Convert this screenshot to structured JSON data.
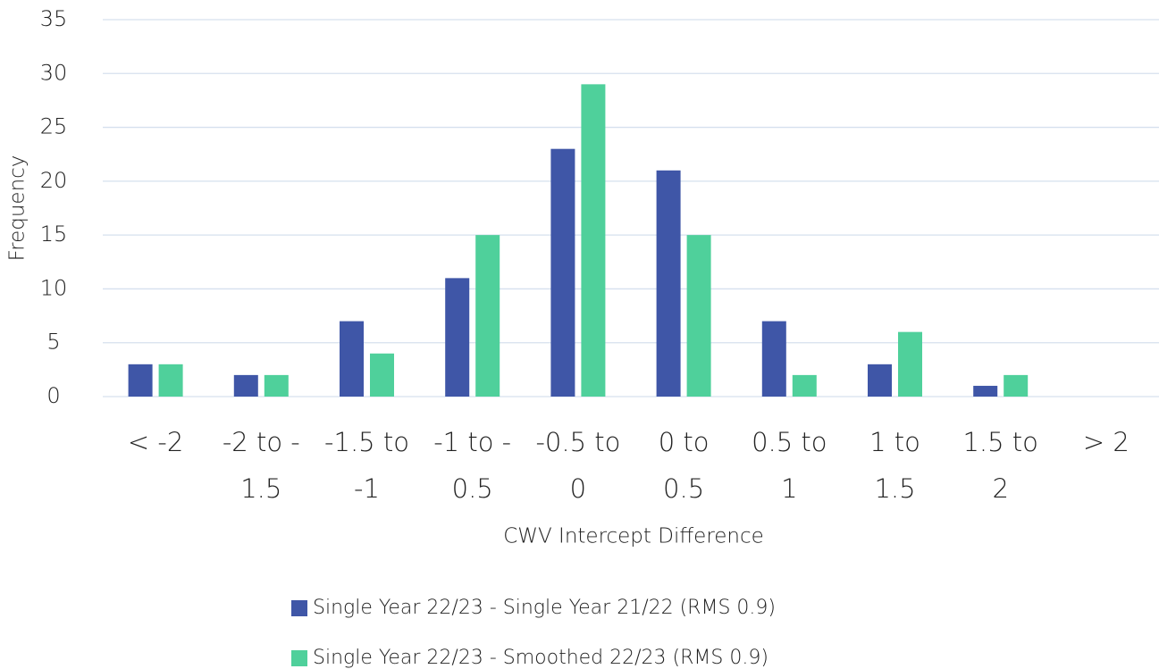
{
  "chart_data": {
    "type": "bar",
    "x_label": "CWV Intercept Difference",
    "y_label": "Frequency",
    "categories": [
      [
        "< -2"
      ],
      [
        "-2 to -",
        "1.5"
      ],
      [
        "-1.5 to",
        "-1"
      ],
      [
        "-1 to -",
        "0.5"
      ],
      [
        "-0.5 to",
        "0"
      ],
      [
        "0 to",
        "0.5"
      ],
      [
        "0.5 to",
        "1"
      ],
      [
        "1 to",
        "1.5"
      ],
      [
        "1.5 to",
        "2"
      ],
      [
        "> 2"
      ]
    ],
    "series": [
      {
        "name": "Single Year 22/23 - Single Year 21/22 (RMS 0.9)",
        "color": "#3f56a7",
        "values": [
          3,
          2,
          7,
          11,
          23,
          21,
          7,
          3,
          1,
          0
        ]
      },
      {
        "name": "Single Year 22/23 - Smoothed 22/23 (RMS 0.9)",
        "color": "#4fd09b",
        "values": [
          3,
          2,
          4,
          15,
          29,
          15,
          2,
          6,
          2,
          0
        ]
      }
    ],
    "ylim": [
      0,
      35
    ],
    "yticks": [
      0,
      5,
      10,
      15,
      20,
      25,
      30,
      35
    ],
    "grid": true,
    "legend": "bottom"
  }
}
